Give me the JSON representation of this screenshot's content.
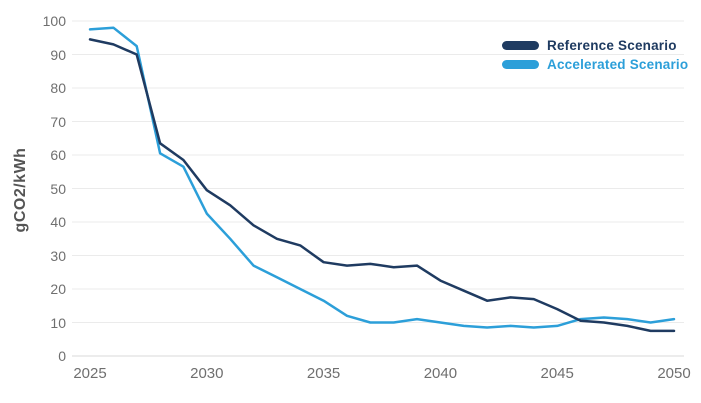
{
  "chart_data": {
    "type": "line",
    "title": "",
    "xlabel": "",
    "ylabel": "gCO2/kWh",
    "ylim": [
      0,
      100
    ],
    "y_ticks": [
      0,
      10,
      20,
      30,
      40,
      50,
      60,
      70,
      80,
      90,
      100
    ],
    "x_tick_labels": [
      "2025",
      "2030",
      "2035",
      "2040",
      "2045",
      "2050"
    ],
    "grid": "horizontal",
    "legend_position": "top-right",
    "x": [
      2025,
      2026,
      2027,
      2028,
      2029,
      2030,
      2031,
      2032,
      2033,
      2034,
      2035,
      2036,
      2037,
      2038,
      2039,
      2040,
      2041,
      2042,
      2043,
      2044,
      2045,
      2046,
      2047,
      2048,
      2049,
      2050
    ],
    "series": [
      {
        "name": "Reference Scenario",
        "color": "#1F3B61",
        "values": [
          94.5,
          93,
          90,
          63.5,
          58.5,
          49.5,
          45,
          39,
          35,
          33,
          28,
          27,
          27.5,
          26.5,
          27,
          22.5,
          19.5,
          16.5,
          17.5,
          17,
          14,
          10.5,
          10,
          9,
          7.5,
          7.5
        ]
      },
      {
        "name": "Accelerated Scenario",
        "color": "#2C9FD9",
        "values": [
          97.5,
          98,
          92.5,
          60.5,
          56.5,
          42.5,
          35,
          27,
          23.5,
          20,
          16.5,
          12,
          10,
          10,
          11,
          10,
          9,
          8.5,
          9,
          8.5,
          9,
          11,
          11.5,
          11,
          10,
          11
        ]
      }
    ]
  },
  "style": {
    "gridline_color": "#ebebeb",
    "zeroline_color": "#d9d9d9",
    "tick_label_color": "#6f6f6f",
    "axis_title_color": "#555555"
  }
}
